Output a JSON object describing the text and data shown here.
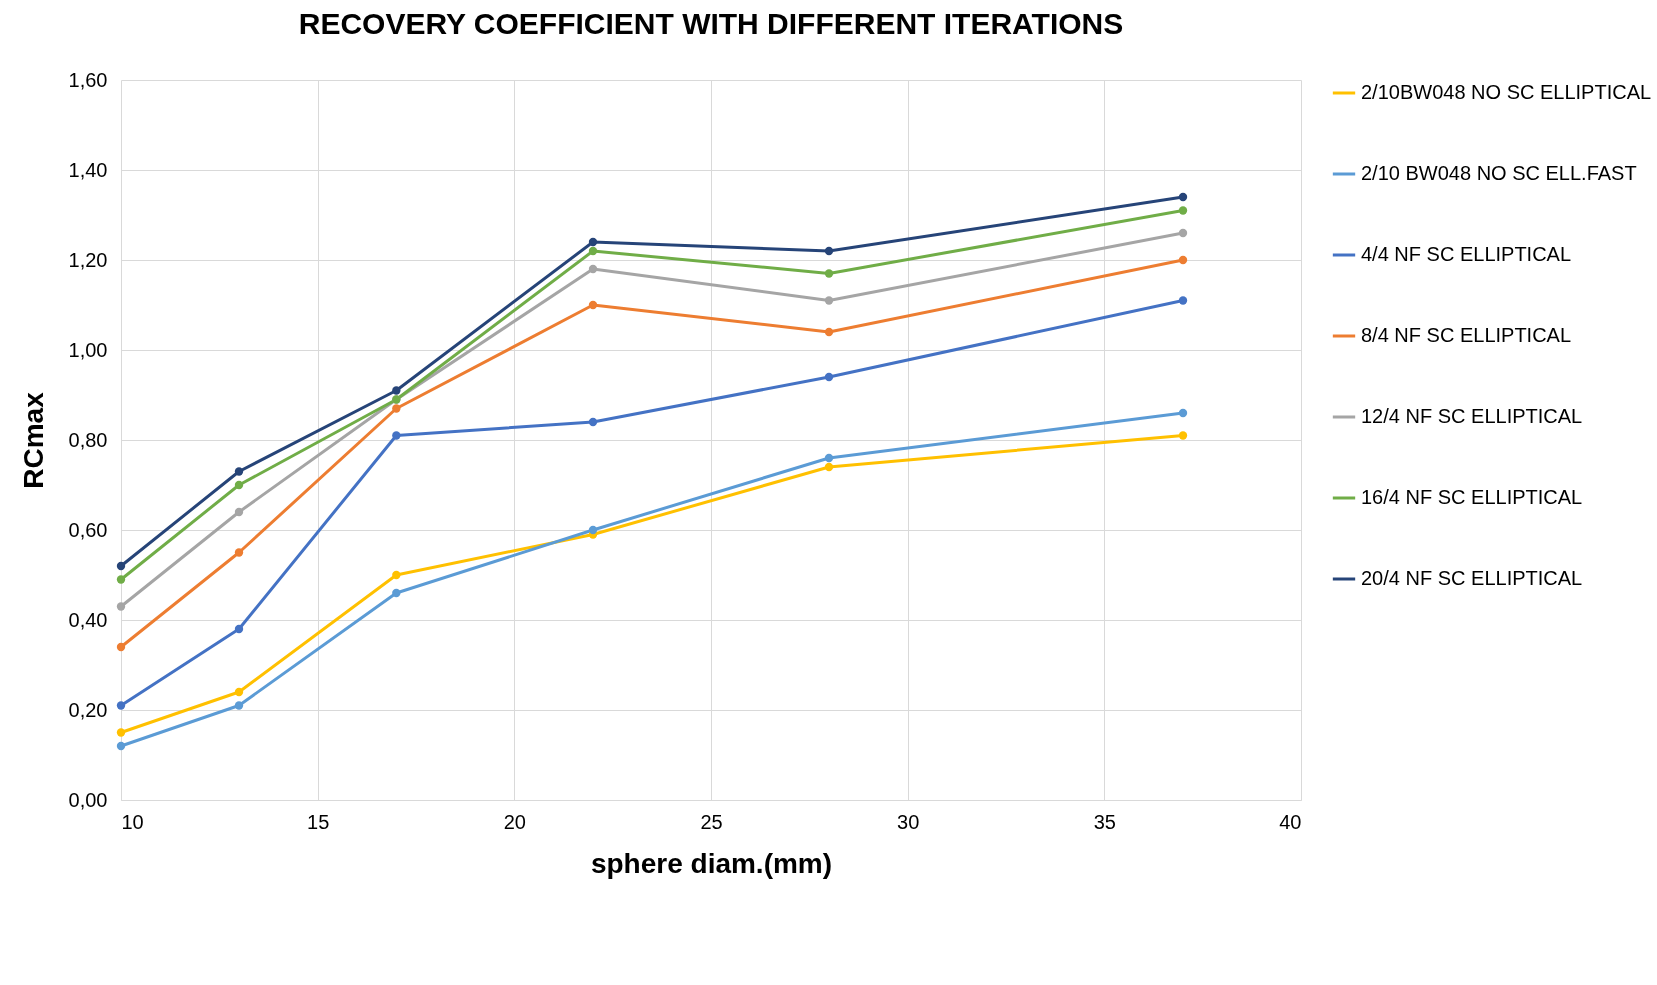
{
  "chart_data": {
    "type": "line",
    "title": "RECOVERY COEFFICIENT WITH DIFFERENT ITERATIONS",
    "xlabel": "sphere diam.(mm)",
    "ylabel": "RCmax",
    "x": [
      10,
      13,
      17,
      22,
      28,
      37
    ],
    "series": [
      {
        "name": "2/10BW048 NO SC ELLIPTICAL",
        "color": "#ffc000",
        "values": [
          0.15,
          0.24,
          0.5,
          0.59,
          0.74,
          0.81
        ]
      },
      {
        "name": "2/10 BW048 NO SC ELL.FAST",
        "color": "#5b9bd5",
        "values": [
          0.12,
          0.21,
          0.46,
          0.6,
          0.76,
          0.86
        ]
      },
      {
        "name": "4/4 NF SC ELLIPTICAL",
        "color": "#4472c4",
        "values": [
          0.21,
          0.38,
          0.81,
          0.84,
          0.94,
          1.11
        ]
      },
      {
        "name": "8/4 NF SC ELLIPTICAL",
        "color": "#ed7d31",
        "values": [
          0.34,
          0.55,
          0.87,
          1.1,
          1.04,
          1.2
        ]
      },
      {
        "name": "12/4 NF SC ELLIPTICAL",
        "color": "#a5a5a5",
        "values": [
          0.43,
          0.64,
          0.89,
          1.18,
          1.11,
          1.26
        ]
      },
      {
        "name": "16/4 NF SC ELLIPTICAL",
        "color": "#70ad47",
        "values": [
          0.49,
          0.7,
          0.89,
          1.22,
          1.17,
          1.31
        ]
      },
      {
        "name": "20/4 NF SC ELLIPTICAL",
        "color": "#264478",
        "values": [
          0.52,
          0.73,
          0.91,
          1.24,
          1.22,
          1.34
        ]
      }
    ],
    "xlim": [
      10,
      40
    ],
    "xticks": [
      10,
      15,
      20,
      25,
      30,
      35,
      40
    ],
    "ylim": [
      0,
      1.6
    ],
    "yticks": [
      {
        "value": 0,
        "label": "0,00"
      },
      {
        "value": 0.2,
        "label": "0,20"
      },
      {
        "value": 0.4,
        "label": "0,40"
      },
      {
        "value": 0.6,
        "label": "0,60"
      },
      {
        "value": 0.8,
        "label": "0,80"
      },
      {
        "value": 1.0,
        "label": "1,00"
      },
      {
        "value": 1.2,
        "label": "1,20"
      },
      {
        "value": 1.4,
        "label": "1,40"
      },
      {
        "value": 1.6,
        "label": "1,60"
      }
    ],
    "grid": true,
    "legend": "right",
    "marker": "circle",
    "line_style": "solid"
  }
}
